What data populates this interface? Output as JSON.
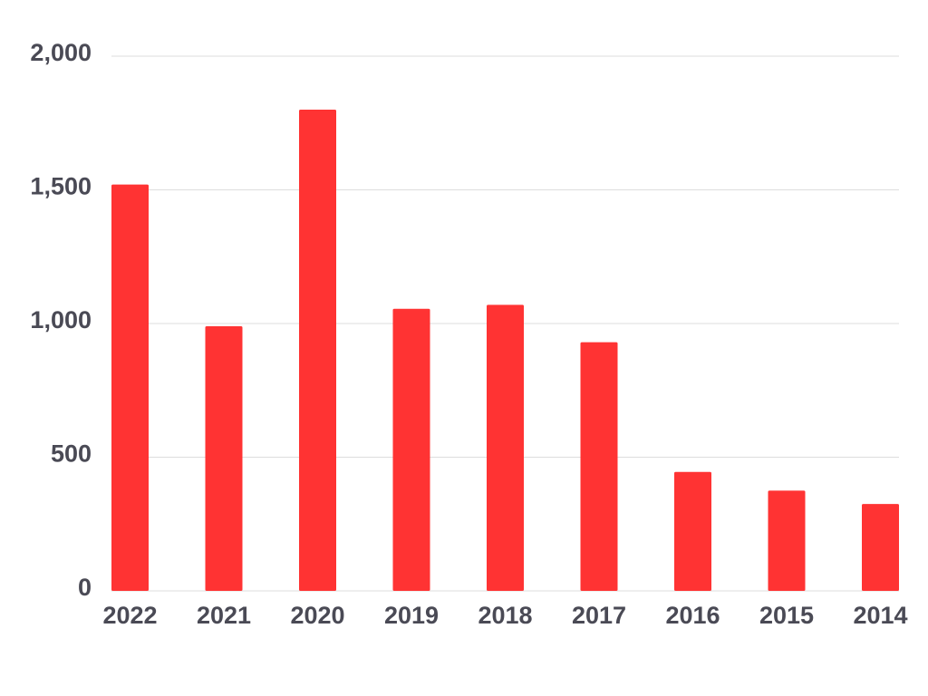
{
  "chart_data": {
    "type": "bar",
    "categories": [
      "2022",
      "2021",
      "2020",
      "2019",
      "2018",
      "2017",
      "2016",
      "2015",
      "2014"
    ],
    "values": [
      1520,
      990,
      1800,
      1055,
      1070,
      930,
      445,
      375,
      325
    ],
    "color": "#ff3333",
    "ylim": [
      0,
      2000
    ],
    "yticks": [
      0,
      500,
      {
        "value": 1000,
        "label": "1,000"
      },
      {
        "value": 1500,
        "label": "1,500"
      },
      {
        "value": 2000,
        "label": "2,000"
      }
    ],
    "grid": true
  }
}
